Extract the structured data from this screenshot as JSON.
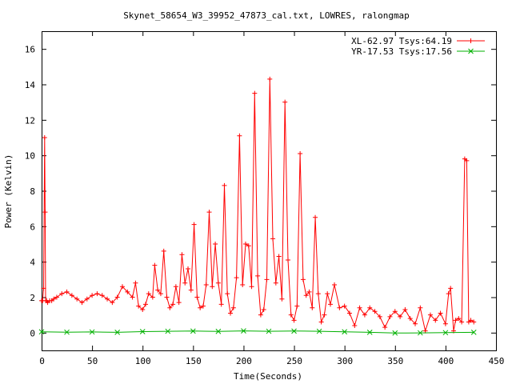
{
  "chart_data": {
    "type": "line",
    "title": "Skynet_58654_W3_39952_47873_cal.txt, LOWRES, ralongmap",
    "xlabel": "Time(Seconds)",
    "ylabel": "Power (Kelvin)",
    "xlim": [
      0,
      450
    ],
    "ylim": [
      -1,
      17
    ],
    "xticks": [
      0,
      50,
      100,
      150,
      200,
      250,
      300,
      350,
      400,
      450
    ],
    "yticks": [
      0,
      2,
      4,
      6,
      8,
      10,
      12,
      14,
      16
    ],
    "grid": false,
    "legend_position": "top-right",
    "series": [
      {
        "name": "XL-62.97 Tsys:64.19",
        "color": "#ff0000",
        "marker": "+",
        "x": [
          0,
          1,
          2,
          3,
          3.5,
          4,
          5,
          6,
          8,
          10,
          12,
          15,
          20,
          25,
          30,
          35,
          40,
          45,
          50,
          55,
          60,
          65,
          70,
          75,
          80,
          85,
          90,
          93,
          96,
          100,
          103,
          106,
          110,
          112,
          115,
          118,
          121,
          124,
          127,
          130,
          133,
          136,
          139,
          142,
          145,
          148,
          151,
          154,
          157,
          160,
          163,
          166,
          169,
          172,
          175,
          178,
          181,
          184,
          187,
          190,
          193,
          196,
          199,
          202,
          205,
          208,
          211,
          214,
          217,
          220,
          223,
          226,
          229,
          232,
          235,
          238,
          241,
          244,
          247,
          250,
          253,
          256,
          259,
          262,
          265,
          268,
          271,
          274,
          277,
          280,
          283,
          286,
          290,
          295,
          300,
          305,
          310,
          315,
          320,
          325,
          330,
          335,
          340,
          345,
          350,
          355,
          360,
          365,
          370,
          375,
          380,
          385,
          390,
          395,
          400,
          403,
          405,
          408,
          410,
          413,
          416,
          419,
          421,
          423,
          425,
          428
        ],
        "values": [
          1.8,
          1.8,
          2.5,
          11.0,
          6.8,
          1.8,
          1.8,
          1.7,
          1.8,
          1.8,
          1.9,
          2.0,
          2.2,
          2.3,
          2.1,
          1.9,
          1.7,
          1.9,
          2.1,
          2.2,
          2.1,
          1.9,
          1.7,
          2.0,
          2.6,
          2.3,
          2.0,
          2.8,
          1.5,
          1.3,
          1.6,
          2.2,
          2.0,
          3.8,
          2.4,
          2.2,
          4.6,
          2.0,
          1.4,
          1.6,
          2.6,
          1.7,
          4.4,
          2.8,
          3.6,
          2.4,
          6.1,
          2.0,
          1.4,
          1.5,
          2.7,
          6.8,
          2.6,
          5.0,
          2.8,
          1.6,
          8.3,
          2.2,
          1.1,
          1.4,
          3.1,
          11.1,
          2.7,
          5.0,
          4.9,
          2.6,
          13.5,
          3.2,
          1.0,
          1.3,
          3.0,
          14.3,
          5.3,
          2.8,
          4.3,
          1.9,
          13.0,
          4.1,
          1.0,
          0.7,
          1.5,
          10.1,
          3.0,
          2.1,
          2.3,
          1.4,
          6.5,
          2.2,
          0.6,
          1.0,
          2.2,
          1.6,
          2.7,
          1.4,
          1.5,
          1.1,
          0.4,
          1.4,
          1.0,
          1.4,
          1.2,
          0.9,
          0.3,
          0.9,
          1.2,
          0.9,
          1.3,
          0.8,
          0.5,
          1.4,
          0.1,
          1.0,
          0.7,
          1.1,
          0.5,
          2.2,
          2.5,
          0.1,
          0.7,
          0.8,
          0.6,
          9.8,
          9.7,
          0.6,
          0.7,
          0.6
        ]
      },
      {
        "name": "YR-17.53 Tsys:17.56",
        "color": "#00b000",
        "marker": "x",
        "x": [
          0,
          25,
          50,
          75,
          100,
          125,
          150,
          175,
          200,
          225,
          250,
          275,
          300,
          325,
          350,
          375,
          400,
          428
        ],
        "values": [
          0.05,
          0.03,
          0.04,
          0.02,
          0.06,
          0.08,
          0.09,
          0.07,
          0.1,
          0.08,
          0.09,
          0.08,
          0.05,
          0.02,
          -0.02,
          -0.01,
          0.0,
          0.02
        ]
      }
    ]
  }
}
